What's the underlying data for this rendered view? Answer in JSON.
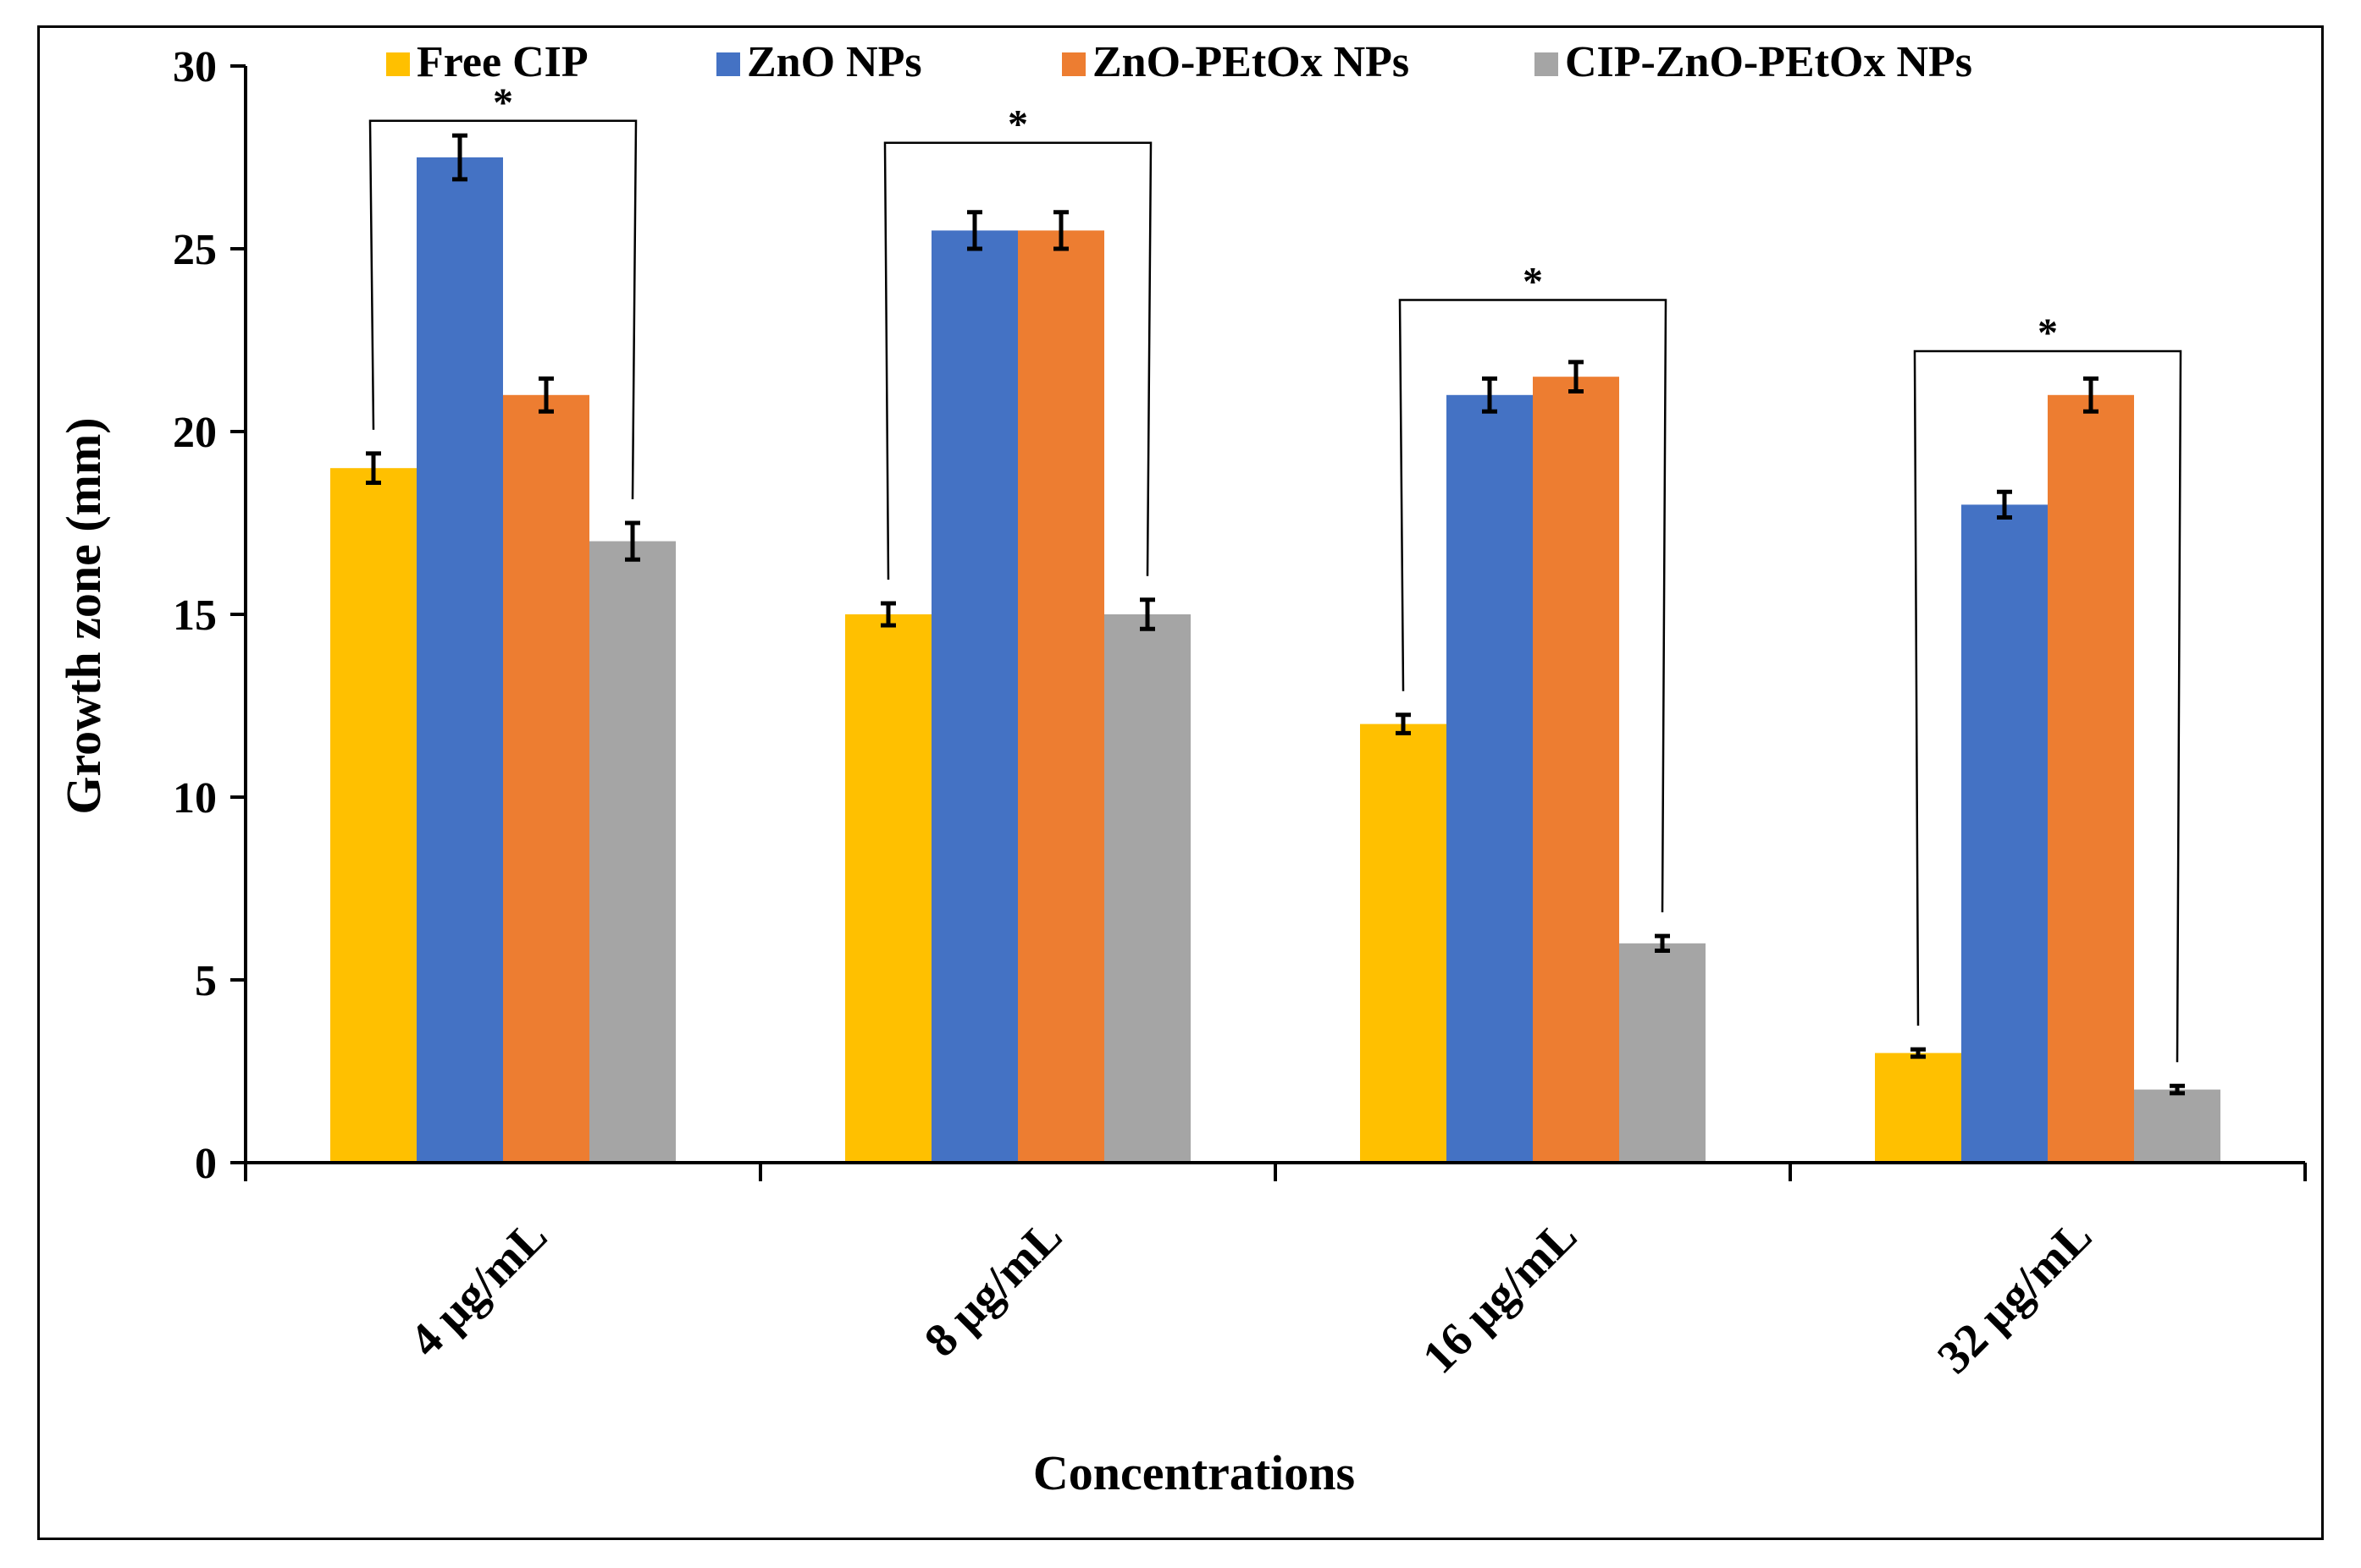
{
  "chart_data": {
    "type": "bar",
    "title": "",
    "xlabel": "Concentrations",
    "ylabel": "Growth zone (mm)",
    "ylim": [
      0,
      30
    ],
    "yticks": [
      0,
      5,
      10,
      15,
      20,
      25,
      30
    ],
    "grid": false,
    "legend_position": "top",
    "categories": [
      "4 μg/mL",
      "8 μg/mL",
      "16 μg/mL",
      "32 μg/mL"
    ],
    "series": [
      {
        "name": "Free CIP",
        "color": "#FFC000",
        "values": [
          19,
          15,
          12,
          3
        ],
        "errors": [
          0.4,
          0.3,
          0.25,
          0.1
        ]
      },
      {
        "name": "ZnO NPs",
        "color": "#4472C4",
        "values": [
          27.5,
          25.5,
          21,
          18
        ],
        "errors": [
          0.6,
          0.5,
          0.45,
          0.35
        ]
      },
      {
        "name": "ZnO-PEtOx NPs",
        "color": "#ED7D31",
        "values": [
          21,
          25.5,
          21.5,
          21
        ],
        "errors": [
          0.45,
          0.5,
          0.4,
          0.45
        ]
      },
      {
        "name": "CIP-ZnO-PEtOx NPs",
        "color": "#A5A5A5",
        "values": [
          17,
          15,
          6,
          2
        ],
        "errors": [
          0.5,
          0.4,
          0.2,
          0.1
        ]
      }
    ],
    "annotations": [
      {
        "category": "4 μg/mL",
        "from": "Free CIP",
        "to": "CIP-ZnO-PEtOx NPs",
        "label": "*",
        "bracket_value": 28.5
      },
      {
        "category": "8 μg/mL",
        "from": "Free CIP",
        "to": "CIP-ZnO-PEtOx NPs",
        "label": "*",
        "bracket_value": 27.9
      },
      {
        "category": "16 μg/mL",
        "from": "Free CIP",
        "to": "CIP-ZnO-PEtOx NPs",
        "label": "*",
        "bracket_value": 23.6
      },
      {
        "category": "32 μg/mL",
        "from": "Free CIP",
        "to": "CIP-ZnO-PEtOx NPs",
        "label": "*",
        "bracket_value": 22.2
      }
    ]
  }
}
